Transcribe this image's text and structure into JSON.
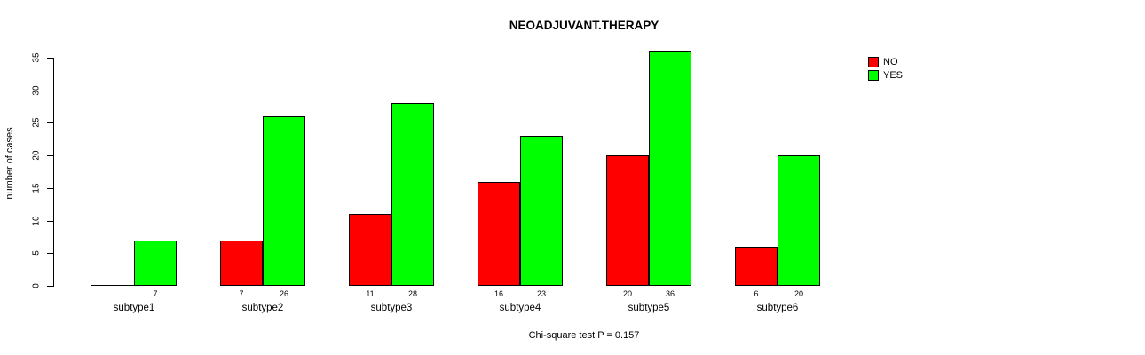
{
  "chart_data": {
    "type": "bar",
    "title": "NEOADJUVANT.THERAPY",
    "xlabel": "",
    "ylabel": "number of cases",
    "annotation": "Chi-square test P = 0.157",
    "categories": [
      "subtype1",
      "subtype2",
      "subtype3",
      "subtype4",
      "subtype5",
      "subtype6"
    ],
    "series": [
      {
        "name": "NO",
        "color": "#ff0000",
        "values": [
          0,
          7,
          11,
          16,
          20,
          6
        ],
        "bar_labels": [
          null,
          "7",
          "11",
          "16",
          "20",
          "6"
        ]
      },
      {
        "name": "YES",
        "color": "#00ff00",
        "values": [
          7,
          26,
          28,
          23,
          36,
          20
        ],
        "bar_labels": [
          "7",
          "26",
          "28",
          "23",
          "36",
          "20"
        ]
      }
    ],
    "yticks": [
      0,
      5,
      10,
      15,
      20,
      25,
      30,
      35
    ],
    "ylim": [
      0,
      35
    ],
    "grid": false,
    "legend": {
      "position": "top-right",
      "entries": [
        {
          "label": "NO",
          "color": "#ff0000"
        },
        {
          "label": "YES",
          "color": "#00ff00"
        }
      ]
    }
  }
}
